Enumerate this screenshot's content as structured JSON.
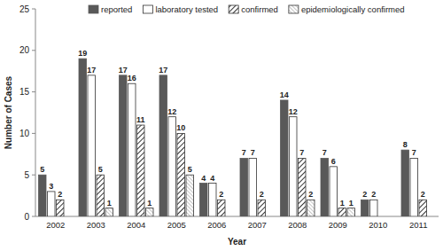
{
  "chart_data": {
    "type": "bar",
    "x_label": "Year",
    "y_label": "Number of Cases",
    "categories": [
      "2002",
      "2003",
      "2004",
      "2005",
      "2006",
      "2007",
      "2008",
      "2009",
      "2010",
      "2011"
    ],
    "series": [
      {
        "name": "reported",
        "color": "#595959",
        "values": [
          5,
          19,
          17,
          17,
          4,
          7,
          14,
          7,
          2,
          8
        ]
      },
      {
        "name": "laboratory tested",
        "color": "#ffffff",
        "values": [
          3,
          17,
          16,
          12,
          4,
          7,
          12,
          6,
          2,
          7
        ]
      },
      {
        "name": "confirmed",
        "color": "#000000",
        "values": [
          2,
          5,
          11,
          10,
          2,
          2,
          7,
          1,
          0,
          2
        ]
      },
      {
        "name": "epidemiologically confirmed",
        "color": "#8c8c8c",
        "values": [
          0,
          1,
          1,
          5,
          0,
          0,
          2,
          1,
          0,
          0
        ]
      }
    ],
    "ylim": [
      0,
      25
    ],
    "yticks": [
      0,
      5,
      10,
      15,
      20,
      25
    ],
    "grid": false,
    "legend": "top",
    "data_labels": true
  }
}
